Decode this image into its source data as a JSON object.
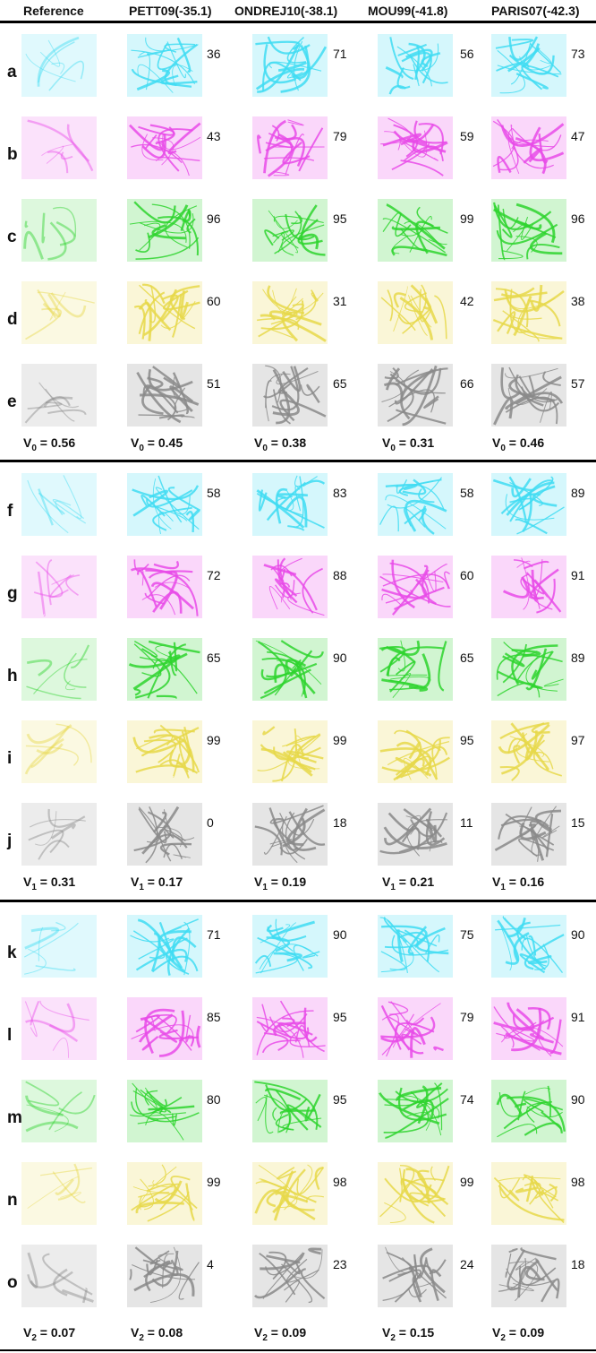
{
  "headers": [
    "Reference",
    "PETT09(-35.1)",
    "ONDREJ10(-38.1)",
    "MOU99(-41.8)",
    "PARIS07(-42.3)"
  ],
  "groups": [
    {
      "rows": [
        {
          "label": "a",
          "color": "#3fdcf2",
          "values": [
            36,
            71,
            56,
            73
          ]
        },
        {
          "label": "b",
          "color": "#e84be8",
          "values": [
            43,
            79,
            59,
            47
          ]
        },
        {
          "label": "c",
          "color": "#2ed32e",
          "values": [
            96,
            95,
            99,
            96
          ]
        },
        {
          "label": "d",
          "color": "#e6d84a",
          "values": [
            60,
            31,
            42,
            38
          ]
        },
        {
          "label": "e",
          "color": "#8a8a8a",
          "values": [
            51,
            65,
            66,
            57
          ]
        }
      ],
      "v_symbol": "V",
      "v_sub": "0",
      "v_values": [
        "0.56",
        "0.45",
        "0.38",
        "0.31",
        "0.46"
      ]
    },
    {
      "rows": [
        {
          "label": "f",
          "color": "#3fdcf2",
          "values": [
            58,
            83,
            58,
            89
          ]
        },
        {
          "label": "g",
          "color": "#e84be8",
          "values": [
            72,
            88,
            60,
            91
          ]
        },
        {
          "label": "h",
          "color": "#2ed32e",
          "values": [
            65,
            90,
            65,
            89
          ]
        },
        {
          "label": "i",
          "color": "#e6d84a",
          "values": [
            99,
            99,
            95,
            97
          ]
        },
        {
          "label": "j",
          "color": "#8a8a8a",
          "values": [
            0,
            18,
            11,
            15
          ]
        }
      ],
      "v_symbol": "V",
      "v_sub": "1",
      "v_values": [
        "0.31",
        "0.17",
        "0.19",
        "0.21",
        "0.16"
      ]
    },
    {
      "rows": [
        {
          "label": "k",
          "color": "#3fdcf2",
          "values": [
            71,
            90,
            75,
            90
          ]
        },
        {
          "label": "l",
          "color": "#e84be8",
          "values": [
            85,
            95,
            79,
            91
          ]
        },
        {
          "label": "m",
          "color": "#2ed32e",
          "values": [
            80,
            95,
            74,
            90
          ]
        },
        {
          "label": "n",
          "color": "#e6d84a",
          "values": [
            99,
            98,
            99,
            98
          ]
        },
        {
          "label": "o",
          "color": "#8a8a8a",
          "values": [
            4,
            23,
            24,
            18
          ]
        }
      ],
      "v_symbol": "V",
      "v_sub": "2",
      "v_values": [
        "0.07",
        "0.08",
        "0.09",
        "0.15",
        "0.09"
      ]
    }
  ]
}
